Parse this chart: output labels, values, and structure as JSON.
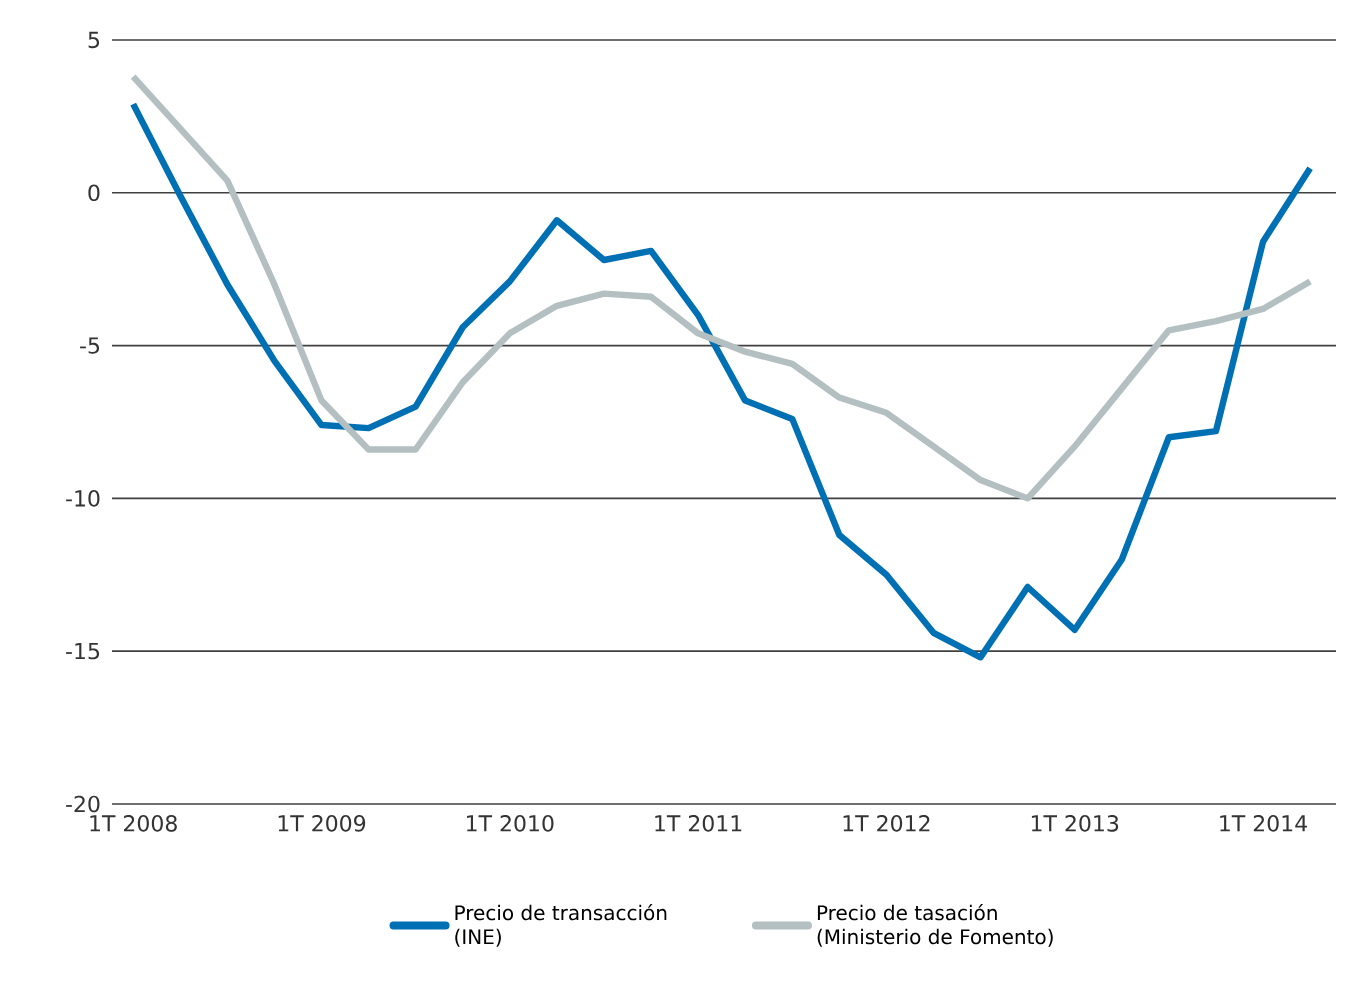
{
  "chart_data": {
    "type": "line",
    "categories": [
      "1T 2008",
      null,
      null,
      null,
      "1T 2009",
      null,
      null,
      null,
      "1T 2010",
      null,
      null,
      null,
      "1T 2011",
      null,
      null,
      null,
      "1T 2012",
      null,
      null,
      null,
      "1T 2013",
      null,
      null,
      null,
      "1T 2014",
      null
    ],
    "series": [
      {
        "name": "Precio de transacción\n(INE)",
        "color": "#0070b5",
        "values": [
          2.9,
          -0.1,
          -3.0,
          -5.5,
          -7.6,
          -7.7,
          -7.0,
          -4.4,
          -2.9,
          -0.9,
          -2.2,
          -1.9,
          -4.0,
          -6.8,
          -7.4,
          -11.2,
          -12.5,
          -14.4,
          -15.2,
          -12.9,
          -14.3,
          -12.0,
          -8.0,
          -7.8,
          -1.6,
          0.8
        ]
      },
      {
        "name": "Precio de tasación\n(Ministerio de Fomento)",
        "color": "#b3bfc1",
        "values": [
          3.8,
          2.1,
          0.4,
          -3.0,
          -6.8,
          -8.4,
          -8.4,
          -6.2,
          -4.6,
          -3.7,
          -3.3,
          -3.4,
          -4.6,
          -5.2,
          -5.6,
          -6.7,
          -7.2,
          -8.3,
          -9.4,
          -10.0,
          -8.3,
          -6.4,
          -4.5,
          -4.2,
          -3.8,
          -2.9
        ]
      }
    ],
    "ylim": [
      -20,
      5
    ],
    "yticks": [
      -20,
      -15,
      -10,
      -5,
      0,
      5
    ],
    "grid": "y",
    "legend": "bottom",
    "marker": "none",
    "line_style": "solid"
  }
}
